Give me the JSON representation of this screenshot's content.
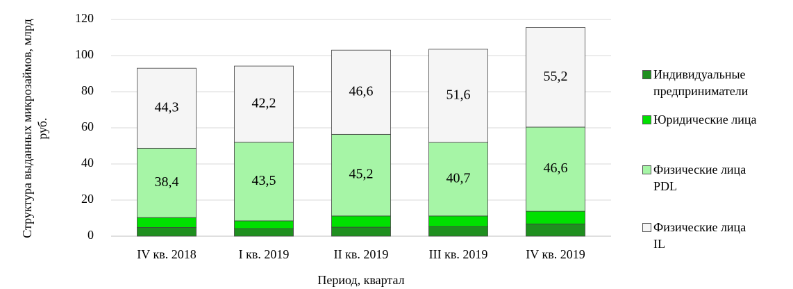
{
  "chart_data": {
    "type": "stacked_bar",
    "y_label": "Структура выданных микрозаймов, млрд руб.",
    "x_label": "Период, квартал",
    "categories": [
      "IV кв. 2018",
      "I кв. 2019",
      "II кв. 2019",
      "III кв. 2019",
      "IV кв. 2019"
    ],
    "series": [
      {
        "name": "Индивидуальные предприниматели",
        "color": "#1f8f1f",
        "values": [
          4.8,
          4.2,
          5.0,
          5.3,
          6.8
        ]
      },
      {
        "name": "Юридические лица",
        "color": "#00e000",
        "values": [
          5.5,
          4.3,
          6.2,
          5.9,
          7.0
        ]
      },
      {
        "name": "Физические лица PDL",
        "color": "#a6f5a6",
        "values": [
          38.4,
          43.5,
          45.2,
          40.7,
          46.6
        ],
        "value_labels": [
          "38,4",
          "43,5",
          "45,2",
          "40,7",
          "46,6"
        ]
      },
      {
        "name": "Физические лица IL",
        "color": "#f5f5f5",
        "values": [
          44.3,
          42.2,
          46.6,
          51.6,
          55.2
        ],
        "value_labels": [
          "44,3",
          "42,2",
          "46,6",
          "51,6",
          "55,2"
        ]
      }
    ],
    "ylim": [
      0,
      120
    ],
    "yticks": [
      0,
      20,
      40,
      60,
      80,
      100,
      120
    ],
    "grid": true,
    "legend": "right"
  }
}
